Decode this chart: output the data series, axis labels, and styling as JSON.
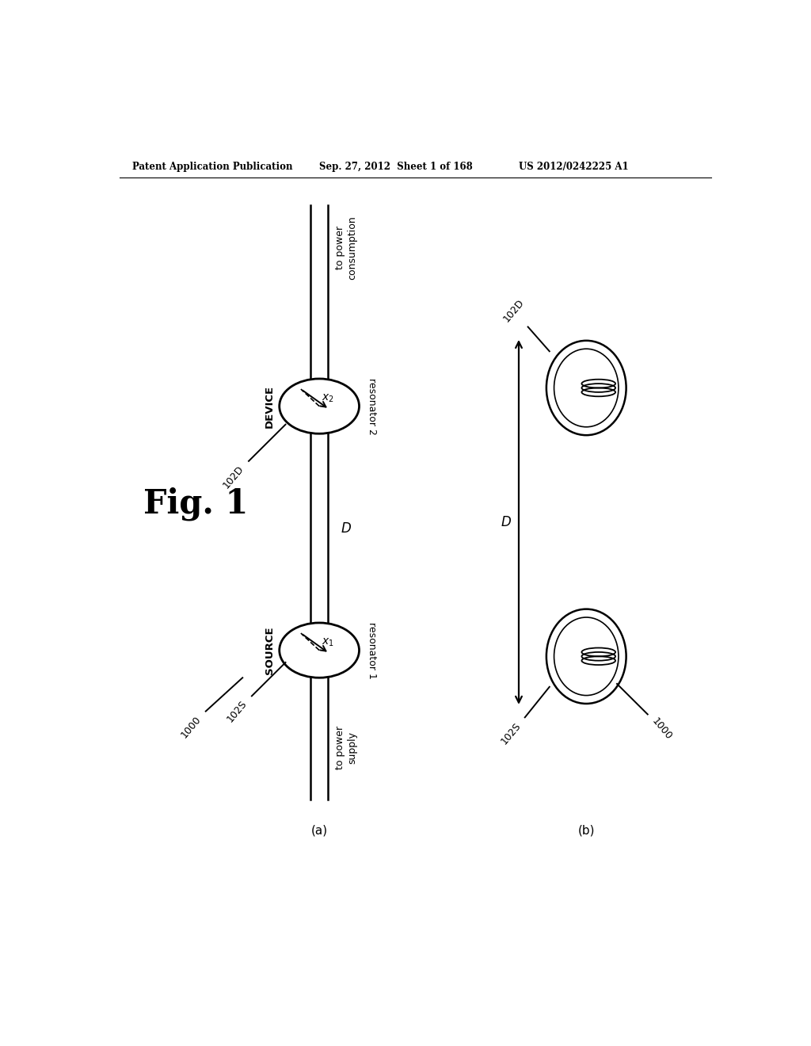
{
  "header_left": "Patent Application Publication",
  "header_mid": "Sep. 27, 2012  Sheet 1 of 168",
  "header_right": "US 2012/0242225 A1",
  "fig_label": "Fig. 1",
  "sub_a": "(a)",
  "sub_b": "(b)",
  "bg_color": "#ffffff",
  "line_color": "#000000",
  "text_color": "#000000"
}
